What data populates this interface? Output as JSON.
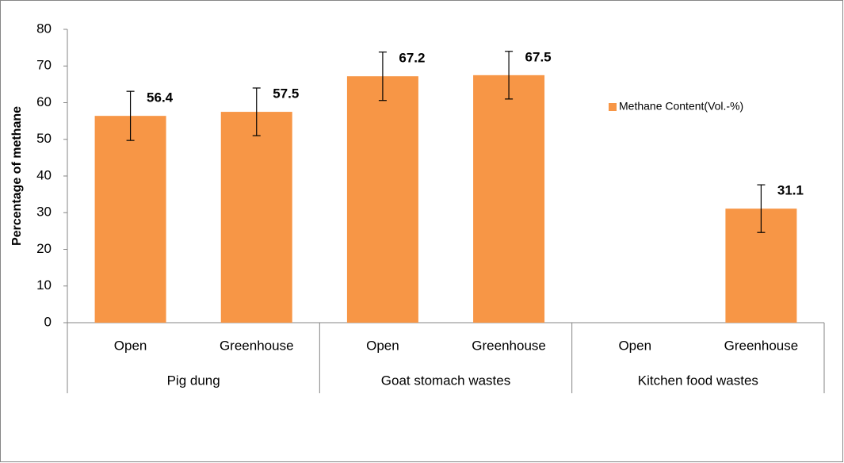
{
  "chart_data": {
    "type": "bar",
    "y_label": "Percentage of methane",
    "categories": [
      "Open",
      "Greenhouse",
      "Open",
      "Greenhouse",
      "Open",
      "Greenhouse"
    ],
    "groups": [
      "Pig dung",
      "Goat stomach wastes",
      "Kitchen food wastes"
    ],
    "series": [
      {
        "name": "Methane Content(Vol.-%)",
        "color": "#f79646",
        "values": [
          56.4,
          57.5,
          67.2,
          67.5,
          null,
          31.1
        ],
        "errors": [
          6.7,
          6.5,
          6.6,
          6.5,
          null,
          6.5
        ]
      }
    ],
    "ylim": [
      0,
      80
    ],
    "yticks": [
      0,
      10,
      20,
      30,
      40,
      50,
      60,
      70,
      80
    ],
    "legend": "right",
    "grid": false
  }
}
